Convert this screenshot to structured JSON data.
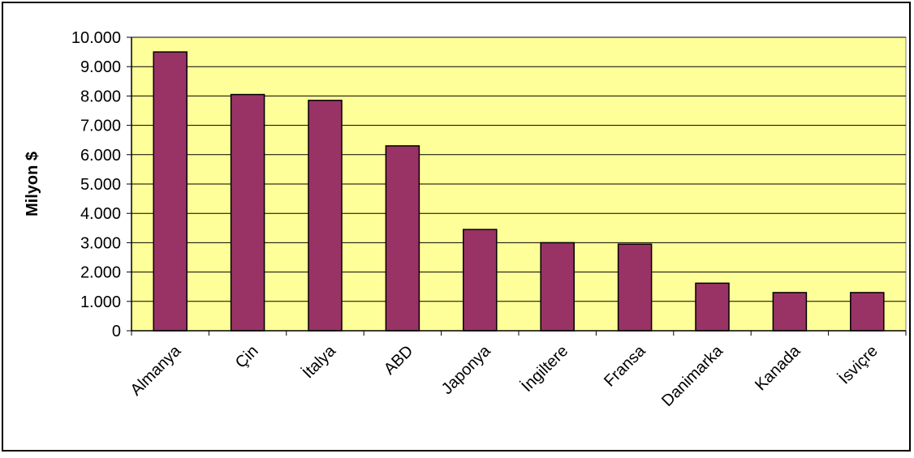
{
  "chart_data": {
    "type": "bar",
    "title": "",
    "xlabel": "",
    "ylabel": "Milyon $",
    "categories": [
      "Almanya",
      "Çin",
      "İtalya",
      "ABD",
      "Japonya",
      "İngiltere",
      "Fransa",
      "Danimarka",
      "Kanada",
      "İsviçre"
    ],
    "values": [
      9500,
      8050,
      7850,
      6300,
      3450,
      3000,
      2950,
      1620,
      1300,
      1300
    ],
    "ylim": [
      0,
      10000
    ],
    "yticks": [
      0,
      1000,
      2000,
      3000,
      4000,
      5000,
      6000,
      7000,
      8000,
      9000,
      10000
    ],
    "ytick_labels": [
      "0",
      "1.000",
      "2.000",
      "3.000",
      "4.000",
      "5.000",
      "6.000",
      "7.000",
      "8.000",
      "9.000",
      "10.000"
    ],
    "grid": true,
    "legend": "none",
    "colors": {
      "bar": "#993366",
      "plot_background": "#FFFF99",
      "frame": "#000000"
    }
  }
}
